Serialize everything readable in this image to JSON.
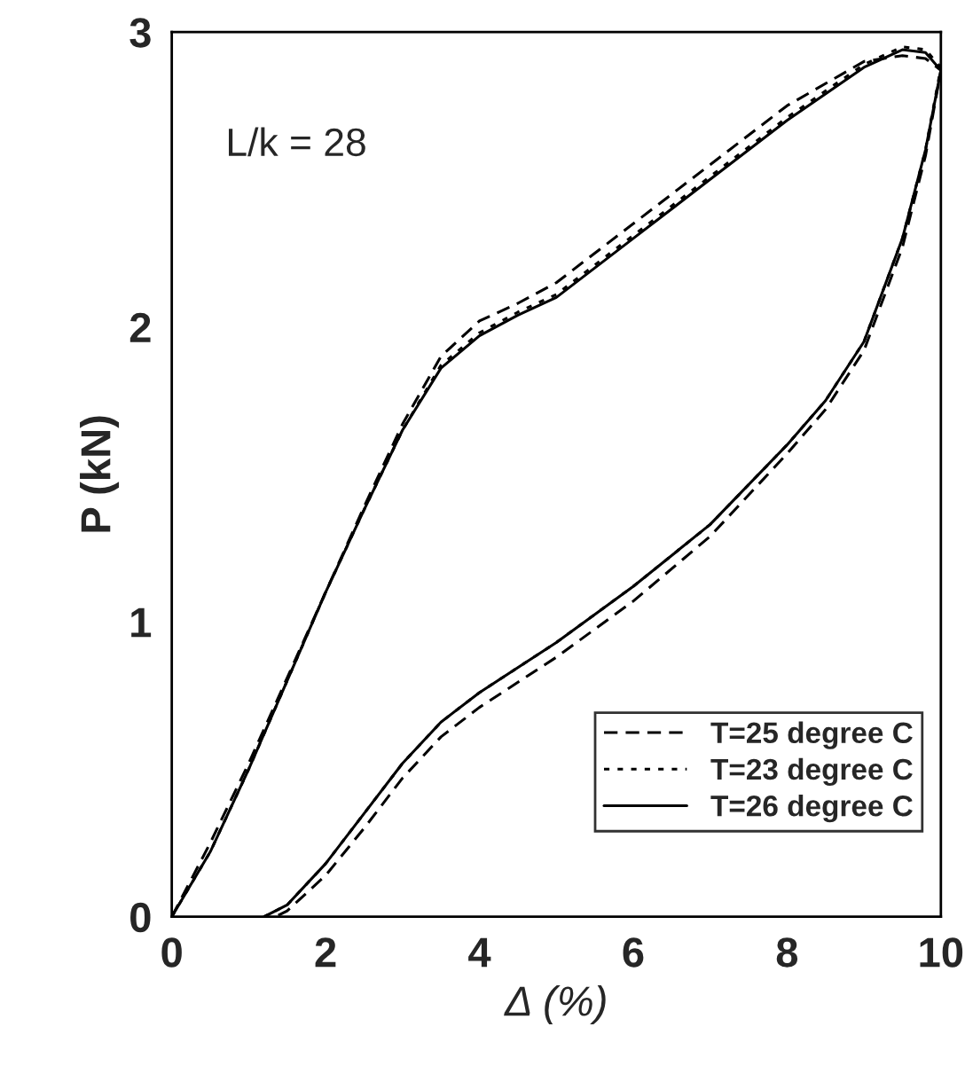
{
  "chart_data": {
    "type": "line",
    "xlabel": "Δ (%)",
    "ylabel": "P (kN)",
    "xlim": [
      0,
      10
    ],
    "xticks": [
      0,
      2,
      4,
      6,
      8,
      10
    ],
    "ylim": [
      0,
      3
    ],
    "yticks": [
      0,
      1,
      2,
      3
    ],
    "grid": false,
    "legend": "bottom right",
    "marker": "none",
    "annotations": [
      "L/k = 28"
    ],
    "series": [
      {
        "name": "T=25 degree C",
        "color": "#000000",
        "line_style": "dashed",
        "x": [
          0,
          0.5,
          1,
          1.5,
          2,
          2.5,
          3,
          3.5,
          4,
          4.5,
          5,
          5.5,
          6,
          7,
          8,
          9,
          9.5,
          9.8,
          10,
          9.8,
          9.5,
          9,
          8.5,
          8,
          7,
          6,
          5,
          4,
          3.5,
          3,
          2.5,
          2,
          1.5,
          1.35
        ],
        "values": [
          0,
          0.25,
          0.52,
          0.81,
          1.1,
          1.39,
          1.67,
          1.9,
          2.02,
          2.08,
          2.15,
          2.25,
          2.35,
          2.55,
          2.75,
          2.9,
          2.92,
          2.91,
          2.87,
          2.58,
          2.27,
          1.92,
          1.72,
          1.57,
          1.29,
          1.07,
          0.88,
          0.71,
          0.61,
          0.47,
          0.3,
          0.14,
          0.02,
          0
        ]
      },
      {
        "name": "T=23 degree C",
        "color": "#000000",
        "line_style": "dotted",
        "x": [
          0,
          0.5,
          1,
          1.5,
          2,
          2.5,
          3,
          3.5,
          4,
          4.5,
          5,
          5.5,
          6,
          7,
          8,
          9,
          9.5,
          9.8,
          10,
          9.8,
          9.5,
          9,
          8.5,
          8,
          7,
          6,
          5,
          4,
          3.5,
          3,
          2.5,
          2,
          1.5,
          1.2
        ],
        "values": [
          0,
          0.22,
          0.5,
          0.8,
          1.1,
          1.38,
          1.65,
          1.87,
          1.98,
          2.05,
          2.11,
          2.21,
          2.31,
          2.51,
          2.71,
          2.89,
          2.95,
          2.94,
          2.88,
          2.6,
          2.3,
          1.95,
          1.75,
          1.6,
          1.33,
          1.12,
          0.93,
          0.76,
          0.66,
          0.52,
          0.35,
          0.18,
          0.04,
          0
        ]
      },
      {
        "name": "T=26 degree C",
        "color": "#000000",
        "line_style": "solid",
        "x": [
          0,
          0.5,
          1,
          1.5,
          2,
          2.5,
          3,
          3.5,
          4,
          4.5,
          5,
          5.5,
          6,
          7,
          8,
          9,
          9.5,
          9.8,
          10,
          9.8,
          9.5,
          9,
          8.5,
          8,
          7,
          6,
          5,
          4,
          3.5,
          3,
          2.5,
          2,
          1.5,
          1.2
        ],
        "values": [
          0,
          0.22,
          0.5,
          0.8,
          1.1,
          1.38,
          1.65,
          1.86,
          1.97,
          2.04,
          2.1,
          2.2,
          2.3,
          2.5,
          2.7,
          2.88,
          2.94,
          2.93,
          2.87,
          2.6,
          2.3,
          1.95,
          1.75,
          1.6,
          1.33,
          1.12,
          0.93,
          0.76,
          0.66,
          0.52,
          0.35,
          0.18,
          0.04,
          0
        ]
      }
    ]
  }
}
